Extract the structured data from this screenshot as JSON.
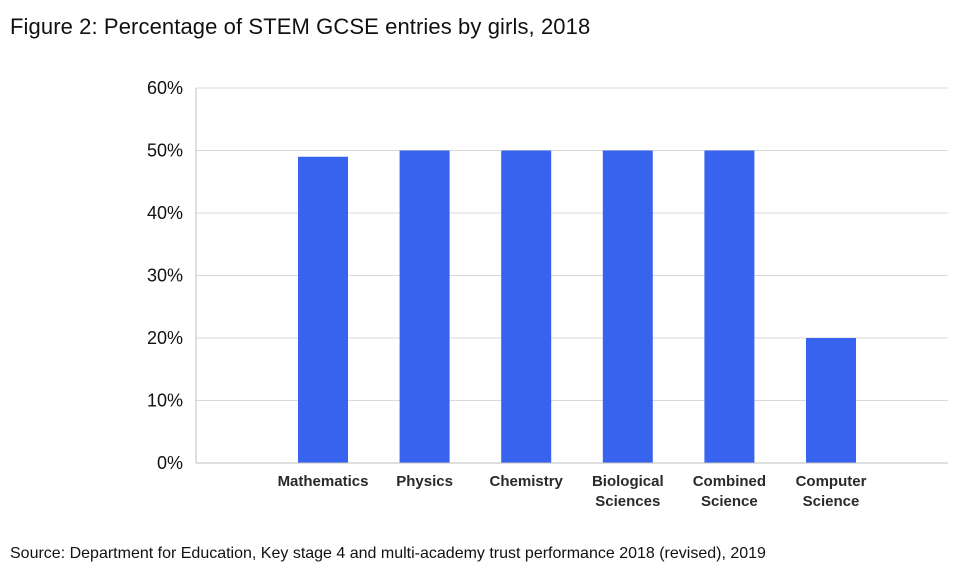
{
  "figure": {
    "title": "Figure 2: Percentage of STEM GCSE entries by girls, 2018",
    "source": "Source: Department for Education, Key stage 4 and multi-academy trust performance 2018 (revised), 2019"
  },
  "colors": {
    "bar": "#3763ee",
    "grid": "#d9d9d9",
    "axis": "#bfbfbf",
    "text": "#111111"
  },
  "chart_data": {
    "type": "bar",
    "categories": [
      [
        "Mathematics"
      ],
      [
        "Physics"
      ],
      [
        "Chemistry"
      ],
      [
        "Biological",
        "Sciences"
      ],
      [
        "Combined",
        "Science"
      ],
      [
        "Computer",
        "Science"
      ]
    ],
    "values": [
      49,
      50,
      50,
      50,
      50,
      20
    ],
    "ylim": [
      0,
      60
    ],
    "yticks": [
      0,
      10,
      20,
      30,
      40,
      50,
      60
    ],
    "ytick_labels": [
      "0%",
      "10%",
      "20%",
      "30%",
      "40%",
      "50%",
      "60%"
    ],
    "grid": true,
    "legend": "none"
  }
}
